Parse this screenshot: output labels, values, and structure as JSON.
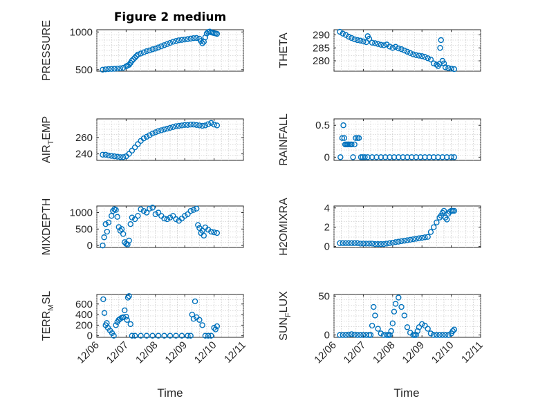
{
  "figure": {
    "title": "Figure 2 medium",
    "xlabel_left": "Time",
    "xlabel_right": "Time",
    "marker_color": "#0072BD",
    "x_tick_labels": [
      "12/06",
      "12/07",
      "12/08",
      "12/09",
      "12/10",
      "12/11"
    ]
  },
  "chart_data": [
    {
      "type": "scatter",
      "ylabel": "PRESSURE",
      "ylabel_main": "PRESSURE",
      "ylabel_sub": "",
      "ylabel_tail": "",
      "xlim": [
        6,
        11
      ],
      "ylim": [
        480,
        1030
      ],
      "yticks": [
        500,
        1000
      ],
      "x": [
        6.2,
        6.3,
        6.4,
        6.5,
        6.6,
        6.7,
        6.8,
        6.9,
        7.0,
        7.05,
        7.1,
        7.15,
        7.2,
        7.25,
        7.3,
        7.35,
        7.4,
        7.5,
        7.6,
        7.7,
        7.8,
        7.9,
        8.0,
        8.1,
        8.2,
        8.3,
        8.4,
        8.5,
        8.6,
        8.7,
        8.8,
        8.9,
        9.0,
        9.1,
        9.2,
        9.3,
        9.4,
        9.5,
        9.55,
        9.6,
        9.65,
        9.7,
        9.75,
        9.8,
        9.85,
        9.9,
        9.95,
        10.0,
        10.05,
        10.1
      ],
      "y": [
        500,
        505,
        508,
        510,
        512,
        515,
        518,
        525,
        545,
        555,
        565,
        590,
        620,
        640,
        660,
        680,
        700,
        715,
        730,
        745,
        755,
        770,
        780,
        795,
        810,
        825,
        840,
        855,
        870,
        880,
        890,
        895,
        900,
        905,
        912,
        918,
        920,
        910,
        880,
        850,
        870,
        930,
        980,
        1000,
        1005,
        995,
        990,
        985,
        980,
        975
      ]
    },
    {
      "type": "scatter",
      "ylabel": "THETA",
      "ylabel_main": "THETA",
      "ylabel_sub": "",
      "ylabel_tail": "",
      "xlim": [
        6,
        11
      ],
      "ylim": [
        276,
        292
      ],
      "yticks": [
        280,
        285,
        290
      ],
      "x": [
        6.2,
        6.3,
        6.4,
        6.5,
        6.6,
        6.7,
        6.8,
        6.9,
        7.0,
        7.1,
        7.15,
        7.2,
        7.3,
        7.4,
        7.5,
        7.6,
        7.7,
        7.8,
        7.9,
        8.0,
        8.1,
        8.2,
        8.3,
        8.4,
        8.5,
        8.6,
        8.7,
        8.8,
        8.9,
        9.0,
        9.1,
        9.2,
        9.3,
        9.4,
        9.5,
        9.55,
        9.6,
        9.62,
        9.65,
        9.7,
        9.75,
        9.8,
        9.9,
        10.0,
        10.1
      ],
      "y": [
        291.2,
        290.5,
        290,
        289.3,
        288.8,
        288.3,
        288,
        287.8,
        287.5,
        287.2,
        289.5,
        288.5,
        287,
        286.8,
        286.5,
        286.2,
        286,
        286.3,
        285.5,
        285,
        285.4,
        284.8,
        284.5,
        284,
        283.5,
        283,
        282.5,
        282.2,
        282,
        281.8,
        281.5,
        281,
        280.5,
        279,
        278.5,
        278,
        278.8,
        285,
        288,
        280,
        279,
        277.5,
        277.2,
        277,
        276.8
      ]
    },
    {
      "type": "scatter",
      "ylabel": "AIR_TEMP",
      "ylabel_main": "AIR",
      "ylabel_sub": "T",
      "ylabel_tail": "EMP",
      "xlim": [
        6,
        11
      ],
      "ylim": [
        232,
        283
      ],
      "yticks": [
        240,
        260
      ],
      "x": [
        6.2,
        6.3,
        6.4,
        6.5,
        6.6,
        6.7,
        6.8,
        6.9,
        7.0,
        7.1,
        7.2,
        7.3,
        7.4,
        7.5,
        7.6,
        7.7,
        7.8,
        7.9,
        8.0,
        8.1,
        8.2,
        8.3,
        8.4,
        8.5,
        8.6,
        8.7,
        8.8,
        8.9,
        9.0,
        9.1,
        9.2,
        9.3,
        9.4,
        9.5,
        9.6,
        9.7,
        9.8,
        9.9,
        10.0,
        10.1
      ],
      "y": [
        239,
        239,
        238,
        237.5,
        237,
        236.5,
        236,
        236,
        237,
        240,
        244,
        248,
        252,
        256,
        259,
        261,
        263,
        265,
        266.5,
        268,
        269,
        270,
        271,
        272,
        273,
        274,
        274.5,
        275,
        275.5,
        275.5,
        276,
        276,
        275.5,
        275,
        274.5,
        275,
        276.5,
        278,
        276,
        275
      ]
    },
    {
      "type": "scatter",
      "ylabel": "RAINFALL",
      "ylabel_main": "RAINFALL",
      "ylabel_sub": "",
      "ylabel_tail": "",
      "xlim": [
        6,
        11
      ],
      "ylim": [
        -0.05,
        0.6
      ],
      "yticks": [
        0,
        0.5
      ],
      "x": [
        6.22,
        6.28,
        6.32,
        6.35,
        6.38,
        6.42,
        6.46,
        6.5,
        6.55,
        6.6,
        6.65,
        6.7,
        6.74,
        6.8,
        6.85,
        6.92,
        6.98,
        7.05,
        7.15,
        7.3,
        7.45,
        7.6,
        7.75,
        7.9,
        8.05,
        8.2,
        8.35,
        8.5,
        8.65,
        8.8,
        8.95,
        9.1,
        9.25,
        9.4,
        9.55,
        9.7,
        9.85,
        10.0,
        10.1
      ],
      "y": [
        0,
        0.3,
        0.5,
        0.3,
        0.2,
        0.2,
        0.2,
        0.2,
        0.2,
        0.2,
        0,
        0.2,
        0.3,
        0.3,
        0.3,
        0,
        0,
        0,
        0,
        0,
        0,
        0,
        0,
        0,
        0,
        0,
        0,
        0,
        0,
        0,
        0,
        0,
        0,
        0,
        0,
        0,
        0,
        0,
        0
      ]
    },
    {
      "type": "scatter",
      "ylabel": "MIXDEPTH",
      "ylabel_main": "MIXDEPTH",
      "ylabel_sub": "",
      "ylabel_tail": "",
      "xlim": [
        6,
        11
      ],
      "ylim": [
        -60,
        1200
      ],
      "yticks": [
        0,
        500,
        1000
      ],
      "x": [
        6.2,
        6.25,
        6.3,
        6.35,
        6.4,
        6.5,
        6.55,
        6.6,
        6.65,
        6.7,
        6.75,
        6.8,
        6.85,
        6.9,
        6.95,
        7.0,
        7.05,
        7.1,
        7.15,
        7.2,
        7.3,
        7.4,
        7.5,
        7.6,
        7.7,
        7.8,
        7.9,
        8.0,
        8.1,
        8.2,
        8.3,
        8.4,
        8.5,
        8.6,
        8.7,
        8.8,
        8.9,
        9.0,
        9.1,
        9.2,
        9.3,
        9.4,
        9.45,
        9.5,
        9.55,
        9.6,
        9.65,
        9.7,
        9.8,
        9.9,
        10.0,
        10.1
      ],
      "y": [
        0,
        250,
        650,
        420,
        700,
        900,
        1050,
        1100,
        1080,
        870,
        560,
        450,
        500,
        350,
        100,
        50,
        30,
        150,
        650,
        850,
        800,
        900,
        1100,
        1050,
        1000,
        1120,
        1150,
        950,
        1000,
        900,
        820,
        800,
        850,
        900,
        800,
        750,
        820,
        900,
        950,
        1050,
        1080,
        1120,
        620,
        530,
        380,
        450,
        300,
        550,
        480,
        420,
        400,
        380
      ]
    },
    {
      "type": "scatter",
      "ylabel": "H2OMIXRA",
      "ylabel_main": "H2OMIXRA",
      "ylabel_sub": "",
      "ylabel_tail": "",
      "xlim": [
        6,
        11
      ],
      "ylim": [
        -0.1,
        4.2
      ],
      "yticks": [
        0,
        2,
        4
      ],
      "x": [
        6.2,
        6.3,
        6.4,
        6.5,
        6.6,
        6.7,
        6.8,
        6.9,
        7.0,
        7.1,
        7.2,
        7.3,
        7.4,
        7.5,
        7.6,
        7.7,
        7.8,
        7.9,
        8.0,
        8.1,
        8.2,
        8.3,
        8.4,
        8.5,
        8.6,
        8.7,
        8.8,
        8.9,
        9.0,
        9.1,
        9.2,
        9.3,
        9.4,
        9.5,
        9.6,
        9.65,
        9.7,
        9.75,
        9.8,
        9.85,
        9.9,
        9.95,
        10.0,
        10.05,
        10.1
      ],
      "y": [
        0.35,
        0.35,
        0.35,
        0.35,
        0.35,
        0.35,
        0.35,
        0.3,
        0.3,
        0.3,
        0.3,
        0.3,
        0.25,
        0.25,
        0.25,
        0.25,
        0.3,
        0.35,
        0.4,
        0.45,
        0.5,
        0.55,
        0.6,
        0.65,
        0.7,
        0.75,
        0.8,
        0.85,
        0.9,
        0.95,
        1.0,
        1.5,
        2.0,
        2.5,
        3.0,
        3.2,
        3.5,
        3.7,
        3.0,
        2.8,
        3.4,
        3.6,
        3.7,
        3.7,
        3.7
      ]
    },
    {
      "type": "scatter",
      "ylabel": "TERR_MSL",
      "ylabel_main": "TERR",
      "ylabel_sub": "M",
      "ylabel_tail": "SL",
      "xlim": [
        6,
        11
      ],
      "ylim": [
        -30,
        780
      ],
      "yticks": [
        0,
        200,
        400,
        600
      ],
      "x": [
        6.22,
        6.26,
        6.3,
        6.34,
        6.38,
        6.45,
        6.52,
        6.58,
        6.65,
        6.7,
        6.75,
        6.8,
        6.85,
        6.9,
        6.95,
        7.0,
        7.03,
        7.06,
        7.1,
        7.15,
        7.2,
        7.3,
        7.5,
        7.7,
        7.9,
        8.1,
        8.3,
        8.5,
        8.7,
        8.9,
        9.1,
        9.2,
        9.25,
        9.3,
        9.35,
        9.4,
        9.5,
        9.6,
        9.7,
        9.8,
        9.9,
        10.0,
        10.05,
        10.1
      ],
      "y": [
        690,
        430,
        200,
        240,
        150,
        100,
        50,
        0,
        200,
        260,
        300,
        320,
        340,
        350,
        480,
        360,
        300,
        720,
        750,
        220,
        0,
        0,
        0,
        0,
        0,
        0,
        0,
        0,
        0,
        0,
        0,
        0,
        400,
        320,
        650,
        350,
        300,
        200,
        0,
        0,
        0,
        150,
        120,
        180
      ]
    },
    {
      "type": "scatter",
      "ylabel": "SUN_FLUX",
      "ylabel_main": "SUN",
      "ylabel_sub": "F",
      "ylabel_tail": "LUX",
      "xlim": [
        6,
        11
      ],
      "ylim": [
        -3,
        52
      ],
      "yticks": [
        0,
        50
      ],
      "x": [
        6.2,
        6.3,
        6.4,
        6.5,
        6.6,
        6.7,
        6.8,
        6.9,
        7.0,
        7.1,
        7.2,
        7.25,
        7.3,
        7.35,
        7.4,
        7.5,
        7.6,
        7.7,
        7.8,
        7.85,
        7.9,
        7.95,
        8.0,
        8.05,
        8.1,
        8.2,
        8.3,
        8.4,
        8.5,
        8.6,
        8.7,
        8.75,
        8.8,
        8.85,
        8.9,
        9.0,
        9.1,
        9.2,
        9.3,
        9.4,
        9.5,
        9.6,
        9.7,
        9.8,
        9.9,
        10.0,
        10.05,
        10.1
      ],
      "y": [
        0,
        0,
        0,
        0.5,
        1,
        0.5,
        0,
        0,
        0,
        0,
        0,
        0,
        12,
        36,
        25,
        8,
        2,
        0,
        0,
        0,
        0,
        5,
        15,
        30,
        40,
        48,
        36,
        25,
        10,
        3,
        0,
        0,
        0,
        5,
        10,
        14,
        12,
        8,
        2,
        0,
        0,
        0,
        0,
        0,
        0,
        2,
        5,
        7
      ]
    }
  ]
}
